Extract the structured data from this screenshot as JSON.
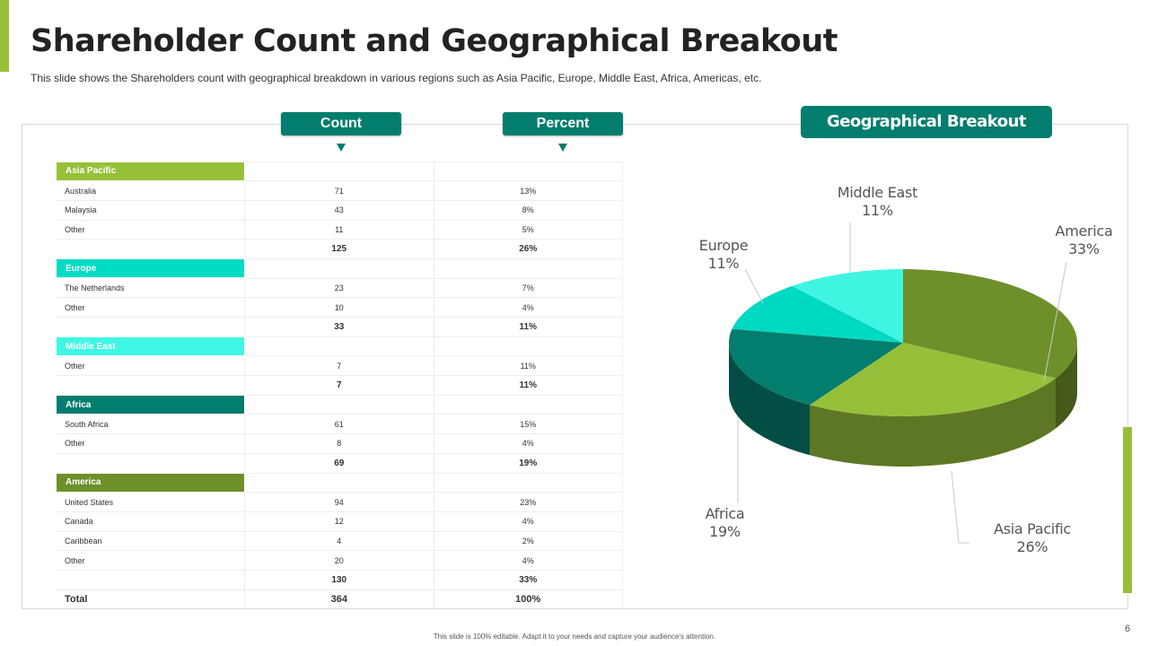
{
  "title": "Shareholder Count and Geographical Breakout",
  "subtitle": "This slide shows the Shareholders  count with geographical breakdown  in various regions  such as Asia Pacific, Europe, Middle East, Africa, Americas, etc.",
  "headers": {
    "count": "Count",
    "percent": "Percent",
    "geo": "Geographical Breakout"
  },
  "table": {
    "regions": [
      {
        "name": "Asia Pacific",
        "color": "#97c03a",
        "rows": [
          [
            "Australia",
            "71",
            "13%"
          ],
          [
            "Malaysia",
            "43",
            "8%"
          ],
          [
            "Other",
            "11",
            "5%"
          ]
        ],
        "total": [
          "125",
          "26%"
        ]
      },
      {
        "name": "Europe",
        "color": "#00dcc4",
        "rows": [
          [
            "The Netherlands",
            "23",
            "7%"
          ],
          [
            "Other",
            "10",
            "4%"
          ]
        ],
        "total": [
          "33",
          "11%"
        ]
      },
      {
        "name": "Middle East",
        "color": "#3ff7e4",
        "rows": [
          [
            "Other",
            "7",
            "11%"
          ]
        ],
        "total": [
          "7",
          "11%"
        ]
      },
      {
        "name": "Africa",
        "color": "#037d6d",
        "rows": [
          [
            "South Africa",
            "61",
            "15%"
          ],
          [
            "Other",
            "8",
            "4%"
          ]
        ],
        "total": [
          "69",
          "19%"
        ]
      },
      {
        "name": "America",
        "color": "#6f8f2a",
        "rows": [
          [
            "United States",
            "94",
            "23%"
          ],
          [
            "Canada",
            "12",
            "4%"
          ],
          [
            "Caribbean",
            "4",
            "2%"
          ],
          [
            "Other",
            "20",
            "4%"
          ]
        ],
        "total": [
          "130",
          "33%"
        ]
      }
    ],
    "grand_total": [
      "Total",
      "364",
      "100%"
    ]
  },
  "chart_data": {
    "type": "pie",
    "title": "Geographical Breakout",
    "style": "3d",
    "slices": [
      {
        "name": "America",
        "value": 33,
        "label": "33%",
        "color": "#6f8f2a"
      },
      {
        "name": "Asia Pacific",
        "value": 26,
        "label": "26%",
        "color": "#97c03a"
      },
      {
        "name": "Africa",
        "value": 19,
        "label": "19%",
        "color": "#037d6d"
      },
      {
        "name": "Europe",
        "value": 11,
        "label": "11%",
        "color": "#00d9c2"
      },
      {
        "name": "Middle East",
        "value": 11,
        "label": "11%",
        "color": "#3ff5e2"
      }
    ]
  },
  "footer": "This slide is 100% editable. Adapt it to your needs and capture your audience's attention.",
  "page_number": "6"
}
